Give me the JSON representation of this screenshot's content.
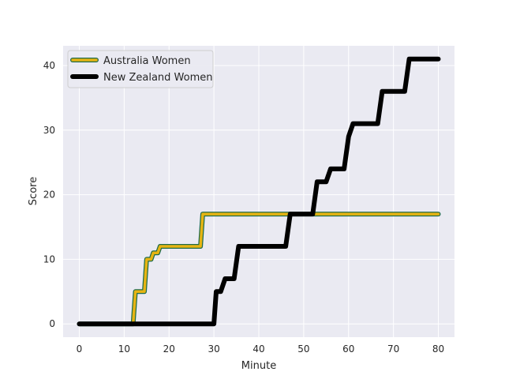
{
  "chart_data": {
    "type": "line",
    "title": "",
    "xlabel": "Minute",
    "ylabel": "Score",
    "xlim": [
      -3.6,
      83.6
    ],
    "ylim": [
      -2.05,
      43.05
    ],
    "xticks": [
      0,
      10,
      20,
      30,
      40,
      50,
      60,
      70,
      80
    ],
    "yticks": [
      0,
      10,
      20,
      30,
      40
    ],
    "xtick_labels": [
      "0",
      "10",
      "20",
      "30",
      "40",
      "50",
      "60",
      "70",
      "80"
    ],
    "ytick_labels": [
      "0",
      "10",
      "20",
      "30",
      "40"
    ],
    "grid": true,
    "legend_position": "upper-left",
    "series": [
      {
        "name": "Australia Women",
        "color": "#e6b412",
        "edge_color": "#1f6b4a",
        "x": [
          0,
          12,
          12.5,
          14.5,
          15,
          16,
          16.5,
          17.5,
          18,
          27,
          27.5,
          80
        ],
        "y": [
          0,
          0,
          5,
          5,
          10,
          10,
          11,
          11,
          12,
          12,
          17,
          17
        ]
      },
      {
        "name": "New Zealand Women",
        "color": "#000000",
        "edge_color": "#000000",
        "x": [
          0,
          30,
          30.5,
          31.5,
          32.5,
          34.5,
          35.5,
          46,
          47,
          52,
          53,
          55,
          56,
          59,
          60,
          61,
          62,
          66.5,
          67.5,
          72.5,
          73.5,
          80
        ],
        "y": [
          0,
          0,
          5,
          5,
          7,
          7,
          12,
          12,
          17,
          17,
          22,
          22,
          24,
          24,
          29,
          31,
          31,
          31,
          36,
          36,
          41,
          41
        ]
      }
    ]
  }
}
